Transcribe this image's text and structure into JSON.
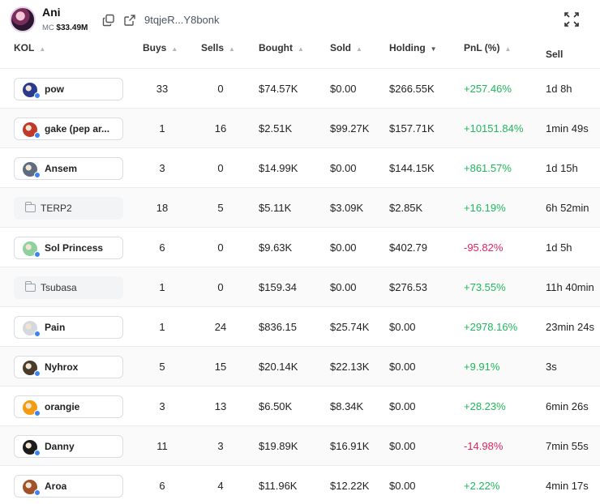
{
  "token": {
    "name": "Ani",
    "mc_label": "MC",
    "mc_value": "$33.49M",
    "address": "9tqjeR...Y8bonk",
    "icons": [
      "copy-icon",
      "external-link-icon",
      "expand-icon"
    ]
  },
  "columns": {
    "kol": "KOL",
    "buys": "Buys",
    "sells": "Sells",
    "bought": "Bought",
    "sold": "Sold",
    "holding": "Holding",
    "pnl": "PnL (%)",
    "last": "Sell"
  },
  "rows": [
    {
      "name": "pow",
      "buys": "33",
      "sells": "0",
      "bought": "$74.57K",
      "sold": "$0.00",
      "holding": "$266.55K",
      "pnl": "+257.46%",
      "last": "1d 8h",
      "tone": "pos",
      "avatar": "#2c3a8c",
      "chip": "user"
    },
    {
      "name": "gake (pep ar...",
      "buys": "1",
      "sells": "16",
      "bought": "$2.51K",
      "sold": "$99.27K",
      "holding": "$157.71K",
      "pnl": "+10151.84%",
      "last": "1min 49s",
      "tone": "pos",
      "avatar": "#c0392b",
      "chip": "user"
    },
    {
      "name": "Ansem",
      "buys": "3",
      "sells": "0",
      "bought": "$14.99K",
      "sold": "$0.00",
      "holding": "$144.15K",
      "pnl": "+861.57%",
      "last": "1d 15h",
      "tone": "pos",
      "avatar": "#5d6d7e",
      "chip": "user"
    },
    {
      "name": "TERP2",
      "buys": "18",
      "sells": "5",
      "bought": "$5.11K",
      "sold": "$3.09K",
      "holding": "$2.85K",
      "pnl": "+16.19%",
      "last": "6h 52min",
      "tone": "pos",
      "avatar": "",
      "chip": "folder"
    },
    {
      "name": "Sol Princess",
      "buys": "6",
      "sells": "0",
      "bought": "$9.63K",
      "sold": "$0.00",
      "holding": "$402.79",
      "pnl": "-95.82%",
      "last": "1d 5h",
      "tone": "neg",
      "avatar": "#8fd19e",
      "chip": "user"
    },
    {
      "name": "Tsubasa",
      "buys": "1",
      "sells": "0",
      "bought": "$159.34",
      "sold": "$0.00",
      "holding": "$276.53",
      "pnl": "+73.55%",
      "last": "11h 40min",
      "tone": "pos",
      "avatar": "",
      "chip": "folder"
    },
    {
      "name": "Pain",
      "buys": "1",
      "sells": "24",
      "bought": "$836.15",
      "sold": "$25.74K",
      "holding": "$0.00",
      "pnl": "+2978.16%",
      "last": "23min 24s",
      "tone": "pos",
      "avatar": "#d5d8dc",
      "chip": "user"
    },
    {
      "name": "Nyhrox",
      "buys": "5",
      "sells": "15",
      "bought": "$20.14K",
      "sold": "$22.13K",
      "holding": "$0.00",
      "pnl": "+9.91%",
      "last": "3s",
      "tone": "pos",
      "avatar": "#4a3b2c",
      "chip": "user"
    },
    {
      "name": "orangie",
      "buys": "3",
      "sells": "13",
      "bought": "$6.50K",
      "sold": "$8.34K",
      "holding": "$0.00",
      "pnl": "+28.23%",
      "last": "6min 26s",
      "tone": "pos",
      "avatar": "#f39c12",
      "chip": "user"
    },
    {
      "name": "Danny",
      "buys": "11",
      "sells": "3",
      "bought": "$19.89K",
      "sold": "$16.91K",
      "holding": "$0.00",
      "pnl": "-14.98%",
      "last": "7min 55s",
      "tone": "neg",
      "avatar": "#1c1c1c",
      "chip": "user"
    },
    {
      "name": "Aroa",
      "buys": "6",
      "sells": "4",
      "bought": "$11.96K",
      "sold": "$12.22K",
      "holding": "$0.00",
      "pnl": "+2.22%",
      "last": "4min 17s",
      "tone": "pos",
      "avatar": "#a0522d",
      "chip": "user"
    }
  ],
  "colors": {
    "positive": "#1fb85a",
    "negative": "#e0245e",
    "badge_dot": "#3b82f6"
  }
}
